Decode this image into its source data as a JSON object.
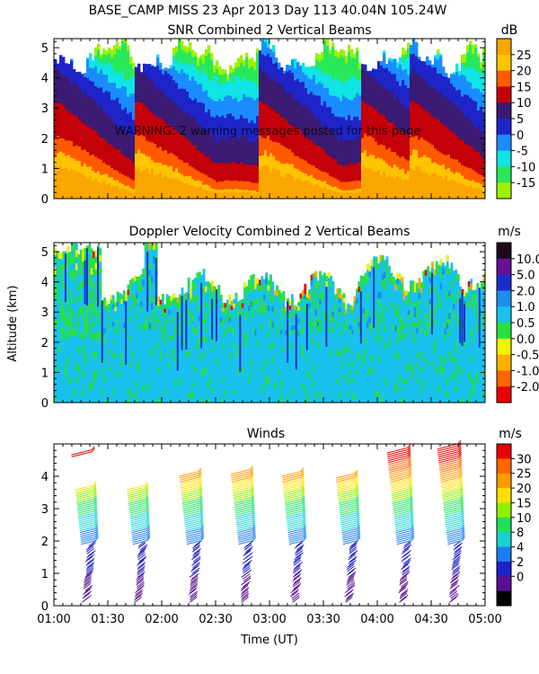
{
  "header": {
    "title": "BASE_CAMP MISS  23 Apr 2013 Day 113 40.04N 105.24W",
    "warning": "WARNING: 2 warning messages posted for this page"
  },
  "time_axis": {
    "label": "Time (UT)",
    "ticks": [
      "01:00",
      "01:30",
      "02:00",
      "02:30",
      "03:00",
      "03:30",
      "04:00",
      "04:30",
      "05:00"
    ],
    "range_hours": [
      1.0,
      5.0
    ]
  },
  "altitude_label": "Altitude (km)",
  "chart_data": [
    {
      "type": "heatmap",
      "title": "SNR Combined 2 Vertical Beams",
      "units": "dB",
      "ylim": [
        0,
        5.3
      ],
      "yticks": [
        "0",
        "1",
        "2",
        "3",
        "4",
        "5"
      ],
      "colorbar": {
        "labels": [
          "25",
          "20",
          "15",
          "10",
          "5",
          "0",
          "-5",
          "-10",
          "-15"
        ],
        "colors": [
          "#f9a600",
          "#ffc400",
          "#ff5a00",
          "#c40008",
          "#3a1a72",
          "#1f24c8",
          "#1a8cff",
          "#10e4e4",
          "#28e85a",
          "#9cf000"
        ]
      },
      "surface_value_db": 25,
      "fall_streaks_ut": [
        1.05,
        1.8,
        2.95,
        3.9,
        4.35
      ]
    },
    {
      "type": "heatmap",
      "title": "Doppler Velocity Combined 2 Vertical Beams",
      "units": "m/s",
      "ylim": [
        0,
        5.3
      ],
      "yticks": [
        "0",
        "1",
        "2",
        "3",
        "4",
        "5"
      ],
      "colorbar": {
        "labels": [
          "10.0",
          "5.0",
          "2.0",
          "1.0",
          "0.5",
          "0.0",
          "-0.5",
          "-1.0",
          "-2.0"
        ],
        "colors": [
          "#1c0a1a",
          "#6a0f96",
          "#1b2ecc",
          "#1a8ef0",
          "#18c2ec",
          "#28e040",
          "#f2f200",
          "#ffb000",
          "#ff6400",
          "#e80000"
        ]
      },
      "dominant_value": "1.0"
    },
    {
      "type": "barbs",
      "title": "Winds",
      "units": "m/s",
      "ylim": [
        0,
        5.0
      ],
      "yticks": [
        "0",
        "1",
        "2",
        "3",
        "4"
      ],
      "colorbar": {
        "labels": [
          "30",
          "25",
          "20",
          "15",
          "10",
          "8",
          "4",
          "2",
          "0"
        ],
        "colors": [
          "#e80000",
          "#ff6400",
          "#ff9a00",
          "#ffe000",
          "#90f000",
          "#20e060",
          "#18d0d0",
          "#1a7ef0",
          "#2020c8",
          "#5a1090",
          "#000000"
        ]
      },
      "profile_times_ut": [
        1.32,
        1.8,
        2.3,
        2.78,
        3.25,
        3.75,
        4.25,
        4.72
      ],
      "profile_tops_km": [
        4.7,
        3.6,
        4.0,
        4.1,
        4.0,
        3.95,
        4.75,
        4.85
      ]
    }
  ]
}
